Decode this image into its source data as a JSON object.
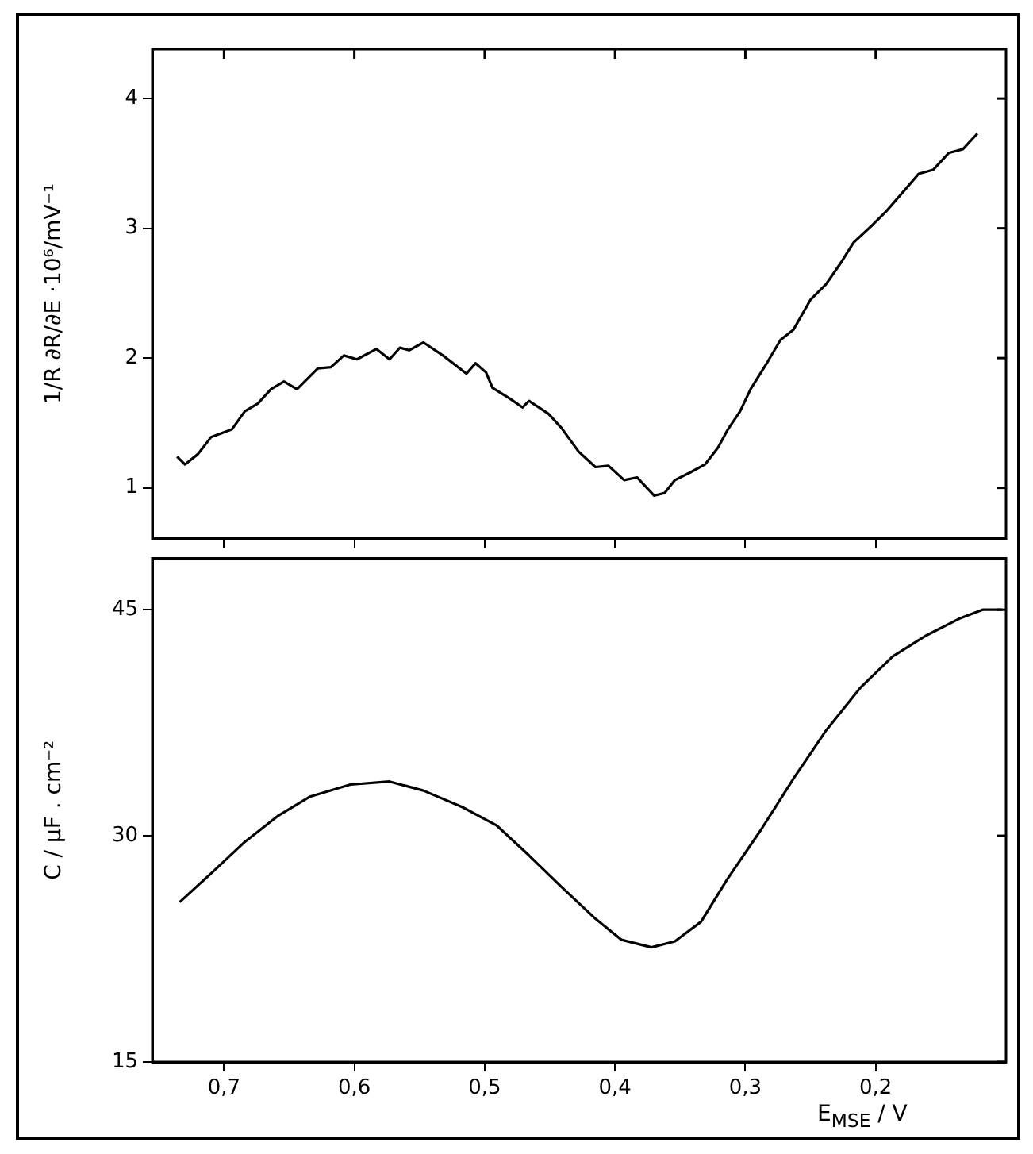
{
  "chart_data": [
    {
      "type": "line",
      "ylabel": "1/R ∂R/∂E ·10⁶/mV⁻¹",
      "tick_labels": "y",
      "xlim": [
        0.755,
        0.1
      ],
      "xticks": [
        {
          "value": 0.7,
          "label": null
        },
        {
          "value": 0.6,
          "label": null
        },
        {
          "value": 0.5,
          "label": null
        },
        {
          "value": 0.4,
          "label": null
        },
        {
          "value": 0.3,
          "label": null
        },
        {
          "value": 0.2,
          "label": null
        }
      ],
      "ylim": [
        0.61,
        4.38
      ],
      "yticks": [
        1,
        2,
        3,
        4
      ],
      "x": [
        0.736,
        0.73,
        0.72,
        0.71,
        0.694,
        0.684,
        0.674,
        0.664,
        0.654,
        0.644,
        0.628,
        0.618,
        0.608,
        0.598,
        0.583,
        0.573,
        0.565,
        0.558,
        0.547,
        0.532,
        0.514,
        0.507,
        0.499,
        0.494,
        0.481,
        0.471,
        0.466,
        0.451,
        0.441,
        0.428,
        0.415,
        0.405,
        0.393,
        0.383,
        0.37,
        0.362,
        0.354,
        0.342,
        0.331,
        0.321,
        0.314,
        0.304,
        0.296,
        0.283,
        0.273,
        0.263,
        0.25,
        0.238,
        0.227,
        0.217,
        0.202,
        0.192,
        0.179,
        0.167,
        0.156,
        0.144,
        0.133,
        0.122
      ],
      "series": [
        {
          "color": "#000000",
          "values": [
            1.24,
            1.18,
            1.26,
            1.39,
            1.45,
            1.59,
            1.65,
            1.76,
            1.82,
            1.76,
            1.92,
            1.93,
            2.02,
            1.99,
            2.07,
            1.99,
            2.08,
            2.06,
            2.12,
            2.02,
            1.88,
            1.96,
            1.89,
            1.77,
            1.69,
            1.62,
            1.67,
            1.57,
            1.46,
            1.28,
            1.16,
            1.17,
            1.06,
            1.08,
            0.94,
            0.96,
            1.06,
            1.12,
            1.18,
            1.31,
            1.44,
            1.59,
            1.76,
            1.97,
            2.14,
            2.22,
            2.45,
            2.57,
            2.73,
            2.89,
            3.03,
            3.13,
            3.28,
            3.42,
            3.45,
            3.58,
            3.61,
            3.73
          ]
        }
      ]
    },
    {
      "type": "line",
      "ylabel": "C / µF . cm⁻²",
      "xlabel": "E$_{MSE}$ / V",
      "xlim": [
        0.755,
        0.1
      ],
      "xticks": [
        {
          "value": 0.7,
          "label": "0,7"
        },
        {
          "value": 0.6,
          "label": "0,6"
        },
        {
          "value": 0.5,
          "label": "0,5"
        },
        {
          "value": 0.4,
          "label": "0,4"
        },
        {
          "value": 0.3,
          "label": "0,3"
        },
        {
          "value": 0.2,
          "label": "0,2"
        }
      ],
      "ylim": [
        15,
        48.4
      ],
      "yticks": [
        15,
        30,
        45
      ],
      "x": [
        0.734,
        0.71,
        0.684,
        0.659,
        0.634,
        0.603,
        0.573,
        0.547,
        0.517,
        0.491,
        0.466,
        0.441,
        0.415,
        0.395,
        0.372,
        0.354,
        0.334,
        0.314,
        0.288,
        0.263,
        0.238,
        0.212,
        0.187,
        0.161,
        0.136,
        0.118,
        0.103
      ],
      "series": [
        {
          "color": "#000000",
          "values": [
            25.6,
            27.5,
            29.6,
            31.3,
            32.6,
            33.4,
            33.6,
            33.0,
            31.9,
            30.7,
            28.7,
            26.6,
            24.5,
            23.1,
            22.6,
            23.0,
            24.3,
            27.1,
            30.4,
            33.8,
            37.0,
            39.8,
            41.9,
            43.3,
            44.4,
            45.0,
            45.0
          ]
        }
      ]
    }
  ]
}
